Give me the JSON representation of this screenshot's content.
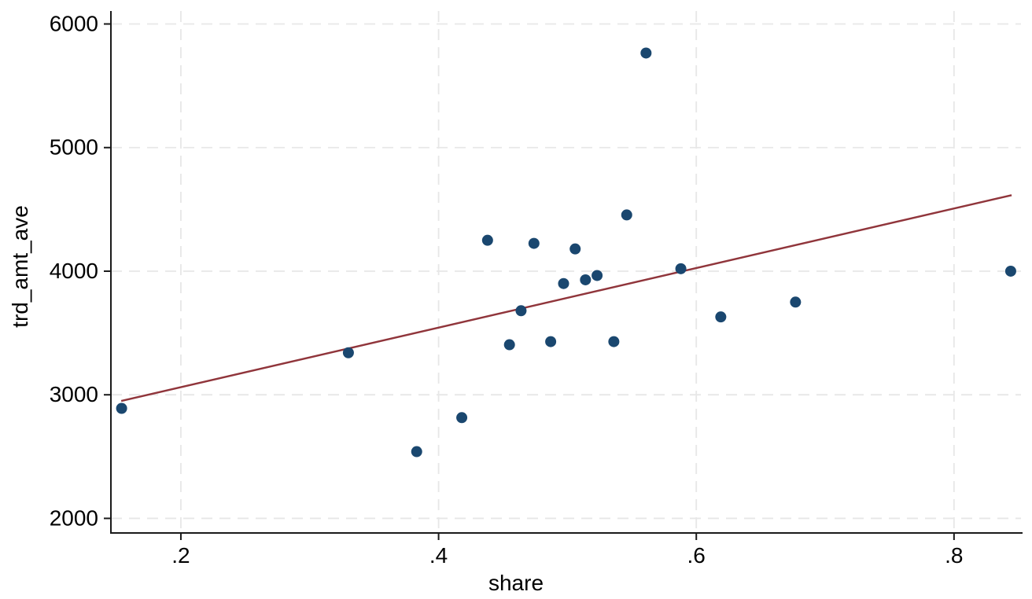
{
  "figure": {
    "background": "#ffffff"
  },
  "chart_data": {
    "type": "scatter",
    "title": "",
    "xlabel": "share",
    "ylabel": "trd_amt_ave",
    "xlim": [
      0.1457,
      0.8532
    ],
    "ylim": [
      1882,
      6105
    ],
    "x_ticks": {
      "values": [
        0.2,
        0.4,
        0.6,
        0.8
      ],
      "labels": [
        ".2",
        ".4",
        ".6",
        ".8"
      ]
    },
    "y_ticks": {
      "values": [
        2000,
        3000,
        4000,
        5000,
        6000
      ],
      "labels": [
        "2000",
        "3000",
        "4000",
        "5000",
        "6000"
      ]
    },
    "grid": true,
    "legend": false,
    "points": [
      [
        0.154,
        2890
      ],
      [
        0.33,
        3340
      ],
      [
        0.383,
        2540
      ],
      [
        0.418,
        2815
      ],
      [
        0.438,
        4250
      ],
      [
        0.455,
        3405
      ],
      [
        0.464,
        3680
      ],
      [
        0.474,
        4225
      ],
      [
        0.487,
        3430
      ],
      [
        0.497,
        3900
      ],
      [
        0.506,
        4180
      ],
      [
        0.514,
        3930
      ],
      [
        0.523,
        3965
      ],
      [
        0.536,
        3430
      ],
      [
        0.546,
        4455
      ],
      [
        0.561,
        5765
      ],
      [
        0.588,
        4020
      ],
      [
        0.619,
        3630
      ],
      [
        0.677,
        3750
      ],
      [
        0.844,
        4000
      ]
    ],
    "fit_line": {
      "x": [
        0.1537,
        0.8447
      ],
      "y": [
        2950,
        4615
      ]
    },
    "colors": {
      "marker": "#1a476f",
      "fit_line": "#90353b",
      "grid": "#e7e7e7",
      "axis": "#1a1a1a",
      "text": "#000000"
    },
    "marker_radius": 7,
    "tick_font_size": 28
  }
}
